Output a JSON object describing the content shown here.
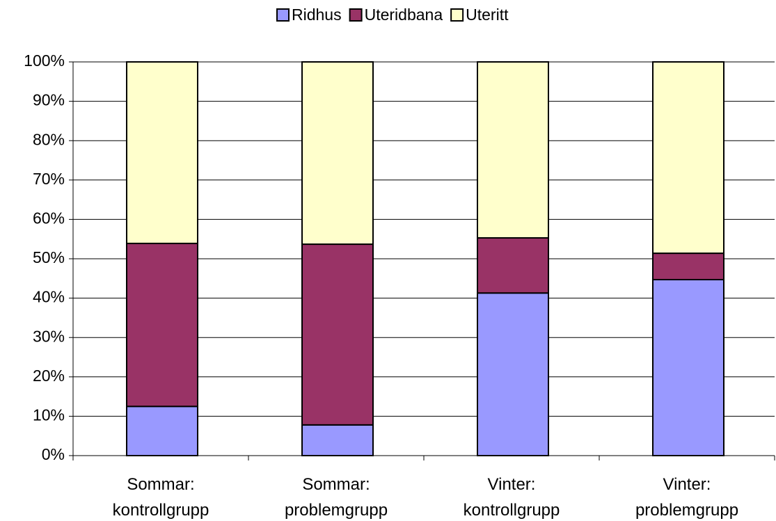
{
  "chart_data": {
    "type": "stacked_bar",
    "categories": [
      "Sommar:\nkontrollgrupp",
      "Sommar:\nproblemgrupp",
      "Vinter:\nkontrollgrupp",
      "Vinter:\nproblemgrupp"
    ],
    "series": [
      {
        "name": "Ridhus",
        "color": "#9999ff",
        "values": [
          12.5,
          7.8,
          41.3,
          44.7
        ]
      },
      {
        "name": "Uteridbana",
        "color": "#993366",
        "values": [
          41.4,
          45.9,
          14.0,
          6.7
        ]
      },
      {
        "name": "Uteritt",
        "color": "#ffffcc",
        "values": [
          46.1,
          46.3,
          44.7,
          48.6
        ]
      }
    ],
    "ylim": [
      0,
      100
    ],
    "yticks": [
      {
        "value": 0,
        "label": "0%"
      },
      {
        "value": 10,
        "label": "10%"
      },
      {
        "value": 20,
        "label": "20%"
      },
      {
        "value": 30,
        "label": "30%"
      },
      {
        "value": 40,
        "label": "40%"
      },
      {
        "value": 50,
        "label": "50%"
      },
      {
        "value": 60,
        "label": "60%"
      },
      {
        "value": 70,
        "label": "70%"
      },
      {
        "value": 80,
        "label": "80%"
      },
      {
        "value": 90,
        "label": "90%"
      },
      {
        "value": 100,
        "label": "100%"
      }
    ],
    "grid": true,
    "legend": "top"
  }
}
